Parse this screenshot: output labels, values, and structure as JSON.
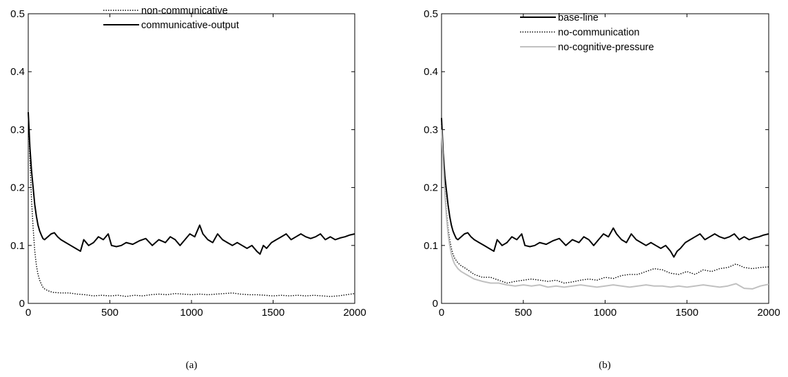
{
  "chart_data": [
    {
      "type": "line",
      "caption": "(a)",
      "title": "",
      "xlabel": "",
      "ylabel": "",
      "xlim": [
        0,
        2000
      ],
      "ylim": [
        0,
        0.5
      ],
      "xticks": [
        "0",
        "500",
        "1000",
        "1500",
        "2000"
      ],
      "yticks": [
        "0",
        "0.1",
        "0.2",
        "0.3",
        "0.4",
        "0.5"
      ],
      "grid": false,
      "legend_position": "top-center",
      "series": [
        {
          "name": "non-communicative",
          "style": "dotted",
          "color": "#000000",
          "x": [
            0,
            10,
            20,
            30,
            40,
            50,
            60,
            70,
            80,
            90,
            100,
            120,
            150,
            200,
            250,
            300,
            350,
            400,
            450,
            500,
            550,
            600,
            650,
            700,
            750,
            800,
            850,
            900,
            950,
            1000,
            1050,
            1100,
            1150,
            1200,
            1250,
            1300,
            1350,
            1400,
            1450,
            1500,
            1550,
            1600,
            1650,
            1700,
            1750,
            1800,
            1850,
            1900,
            1950,
            2000
          ],
          "y": [
            0.33,
            0.25,
            0.18,
            0.13,
            0.09,
            0.065,
            0.05,
            0.04,
            0.033,
            0.028,
            0.025,
            0.022,
            0.019,
            0.018,
            0.018,
            0.016,
            0.015,
            0.013,
            0.014,
            0.013,
            0.014,
            0.012,
            0.014,
            0.013,
            0.015,
            0.016,
            0.015,
            0.017,
            0.016,
            0.015,
            0.016,
            0.015,
            0.016,
            0.017,
            0.018,
            0.016,
            0.015,
            0.015,
            0.014,
            0.013,
            0.014,
            0.013,
            0.014,
            0.013,
            0.014,
            0.013,
            0.012,
            0.013,
            0.015,
            0.017
          ]
        },
        {
          "name": "communicative-output",
          "style": "solid",
          "color": "#000000",
          "x": [
            0,
            10,
            20,
            30,
            40,
            50,
            60,
            70,
            80,
            90,
            100,
            120,
            140,
            160,
            180,
            200,
            230,
            260,
            290,
            320,
            340,
            370,
            400,
            430,
            460,
            490,
            510,
            540,
            570,
            600,
            640,
            680,
            720,
            760,
            800,
            840,
            870,
            900,
            930,
            960,
            990,
            1020,
            1050,
            1070,
            1100,
            1130,
            1160,
            1190,
            1220,
            1250,
            1280,
            1310,
            1340,
            1370,
            1400,
            1420,
            1440,
            1460,
            1490,
            1520,
            1550,
            1580,
            1610,
            1640,
            1670,
            1700,
            1730,
            1760,
            1790,
            1820,
            1850,
            1880,
            1910,
            1940,
            1970,
            2000
          ],
          "y": [
            0.33,
            0.27,
            0.23,
            0.2,
            0.17,
            0.15,
            0.135,
            0.125,
            0.118,
            0.112,
            0.11,
            0.115,
            0.12,
            0.122,
            0.115,
            0.11,
            0.105,
            0.1,
            0.095,
            0.09,
            0.11,
            0.1,
            0.105,
            0.115,
            0.11,
            0.12,
            0.1,
            0.098,
            0.1,
            0.105,
            0.102,
            0.108,
            0.112,
            0.1,
            0.11,
            0.105,
            0.115,
            0.11,
            0.1,
            0.11,
            0.12,
            0.115,
            0.135,
            0.12,
            0.11,
            0.105,
            0.12,
            0.11,
            0.105,
            0.1,
            0.105,
            0.1,
            0.095,
            0.1,
            0.09,
            0.085,
            0.1,
            0.095,
            0.105,
            0.11,
            0.115,
            0.12,
            0.11,
            0.115,
            0.12,
            0.115,
            0.112,
            0.115,
            0.12,
            0.11,
            0.115,
            0.11,
            0.113,
            0.115,
            0.118,
            0.12
          ]
        }
      ]
    },
    {
      "type": "line",
      "caption": "(b)",
      "title": "",
      "xlabel": "",
      "ylabel": "",
      "xlim": [
        0,
        2000
      ],
      "ylim": [
        0,
        0.5
      ],
      "xticks": [
        "0",
        "500",
        "1000",
        "1500",
        "2000"
      ],
      "yticks": [
        "0",
        "0.1",
        "0.2",
        "0.3",
        "0.4",
        "0.5"
      ],
      "grid": false,
      "legend_position": "top-center",
      "series": [
        {
          "name": "base-line",
          "style": "solid",
          "color": "#000000",
          "x": [
            0,
            10,
            20,
            30,
            40,
            50,
            60,
            70,
            80,
            90,
            100,
            120,
            140,
            160,
            180,
            200,
            230,
            260,
            290,
            320,
            340,
            370,
            400,
            430,
            460,
            490,
            510,
            540,
            570,
            600,
            640,
            680,
            720,
            760,
            800,
            840,
            870,
            900,
            930,
            960,
            990,
            1020,
            1050,
            1070,
            1100,
            1130,
            1160,
            1190,
            1220,
            1250,
            1280,
            1310,
            1340,
            1370,
            1400,
            1420,
            1440,
            1460,
            1490,
            1520,
            1550,
            1580,
            1610,
            1640,
            1670,
            1700,
            1730,
            1760,
            1790,
            1820,
            1850,
            1880,
            1910,
            1940,
            1970,
            2000
          ],
          "y": [
            0.32,
            0.26,
            0.22,
            0.195,
            0.17,
            0.15,
            0.135,
            0.125,
            0.118,
            0.112,
            0.11,
            0.115,
            0.12,
            0.122,
            0.115,
            0.11,
            0.105,
            0.1,
            0.095,
            0.09,
            0.11,
            0.1,
            0.105,
            0.115,
            0.11,
            0.12,
            0.1,
            0.098,
            0.1,
            0.105,
            0.102,
            0.108,
            0.112,
            0.1,
            0.11,
            0.105,
            0.115,
            0.11,
            0.1,
            0.11,
            0.12,
            0.115,
            0.13,
            0.12,
            0.11,
            0.105,
            0.12,
            0.11,
            0.105,
            0.1,
            0.105,
            0.1,
            0.095,
            0.1,
            0.09,
            0.08,
            0.09,
            0.095,
            0.105,
            0.11,
            0.115,
            0.12,
            0.11,
            0.115,
            0.12,
            0.115,
            0.112,
            0.115,
            0.12,
            0.11,
            0.115,
            0.11,
            0.113,
            0.115,
            0.118,
            0.12
          ]
        },
        {
          "name": "no-communication",
          "style": "dotted",
          "color": "#000000",
          "x": [
            0,
            10,
            20,
            30,
            40,
            50,
            60,
            70,
            80,
            100,
            120,
            150,
            200,
            250,
            300,
            350,
            400,
            450,
            500,
            550,
            600,
            650,
            700,
            750,
            800,
            850,
            900,
            950,
            1000,
            1050,
            1100,
            1150,
            1200,
            1250,
            1300,
            1350,
            1400,
            1450,
            1500,
            1550,
            1600,
            1650,
            1700,
            1750,
            1800,
            1850,
            1900,
            1950,
            2000
          ],
          "y": [
            0.31,
            0.25,
            0.2,
            0.16,
            0.13,
            0.11,
            0.095,
            0.085,
            0.078,
            0.07,
            0.065,
            0.06,
            0.05,
            0.045,
            0.045,
            0.04,
            0.035,
            0.038,
            0.04,
            0.042,
            0.04,
            0.038,
            0.04,
            0.035,
            0.037,
            0.04,
            0.042,
            0.04,
            0.045,
            0.043,
            0.048,
            0.05,
            0.05,
            0.055,
            0.06,
            0.058,
            0.052,
            0.05,
            0.055,
            0.05,
            0.058,
            0.055,
            0.06,
            0.062,
            0.068,
            0.062,
            0.06,
            0.062,
            0.063
          ]
        },
        {
          "name": "no-cognitive-pressure",
          "style": "solid",
          "color": "#c0c0c0",
          "x": [
            0,
            10,
            20,
            30,
            40,
            50,
            60,
            70,
            80,
            100,
            120,
            150,
            200,
            250,
            300,
            350,
            400,
            450,
            500,
            550,
            600,
            650,
            700,
            750,
            800,
            850,
            900,
            950,
            1000,
            1050,
            1100,
            1150,
            1200,
            1250,
            1300,
            1350,
            1400,
            1450,
            1500,
            1550,
            1600,
            1650,
            1700,
            1750,
            1800,
            1850,
            1900,
            1950,
            2000
          ],
          "y": [
            0.3,
            0.24,
            0.19,
            0.15,
            0.12,
            0.1,
            0.085,
            0.075,
            0.068,
            0.06,
            0.055,
            0.05,
            0.042,
            0.038,
            0.035,
            0.035,
            0.032,
            0.03,
            0.032,
            0.03,
            0.032,
            0.028,
            0.03,
            0.028,
            0.03,
            0.032,
            0.03,
            0.028,
            0.03,
            0.032,
            0.03,
            0.028,
            0.03,
            0.032,
            0.03,
            0.03,
            0.028,
            0.03,
            0.028,
            0.03,
            0.032,
            0.03,
            0.028,
            0.03,
            0.034,
            0.026,
            0.025,
            0.03,
            0.033
          ]
        }
      ]
    }
  ]
}
